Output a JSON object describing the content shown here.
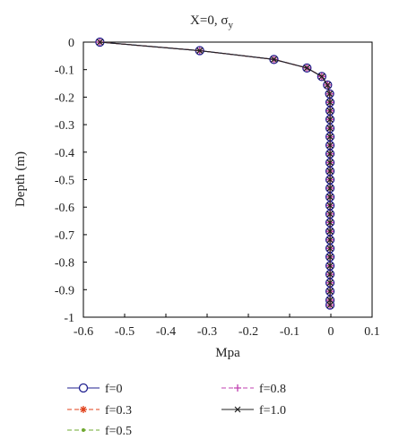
{
  "chart_data": {
    "type": "line",
    "title": "X=0, σ",
    "title_subscript": "y",
    "xlabel": "Mpa",
    "ylabel": "Depth (m)",
    "xlim": [
      -0.6,
      0.1
    ],
    "ylim": [
      -1,
      0
    ],
    "x_ticks": [
      -0.6,
      -0.5,
      -0.4,
      -0.3,
      -0.2,
      -0.1,
      0,
      0.1
    ],
    "x_tick_labels": [
      "-0.6",
      "-0.5",
      "-0.4",
      "-0.3",
      "-0.2",
      "-0.1",
      "0",
      "0.1"
    ],
    "y_ticks": [
      0,
      -0.1,
      -0.2,
      -0.3,
      -0.4,
      -0.5,
      -0.6,
      -0.7,
      -0.8,
      -0.9,
      -1
    ],
    "y_tick_labels": [
      "0",
      "-0.1",
      "-0.2",
      "-0.3",
      "-0.4",
      "-0.5",
      "-0.6",
      "-0.7",
      "-0.8",
      "-0.9",
      "-1"
    ],
    "grid": false,
    "legend_position": "bottom",
    "depth": [
      0,
      -0.031,
      -0.063,
      -0.094,
      -0.125,
      -0.156,
      -0.188,
      -0.219,
      -0.25,
      -0.281,
      -0.313,
      -0.344,
      -0.375,
      -0.406,
      -0.438,
      -0.469,
      -0.5,
      -0.531,
      -0.563,
      -0.594,
      -0.625,
      -0.656,
      -0.688,
      -0.719,
      -0.75,
      -0.781,
      -0.813,
      -0.844,
      -0.875,
      -0.906,
      -0.938,
      -0.956
    ],
    "series": [
      {
        "name": "f=0",
        "color": "#1f1f8f",
        "marker": "circle",
        "dash": "",
        "values": [
          -0.56,
          -0.318,
          -0.138,
          -0.058,
          -0.022,
          -0.008,
          -0.003,
          -0.002,
          -0.002,
          -0.002,
          -0.002,
          -0.002,
          -0.002,
          -0.002,
          -0.002,
          -0.002,
          -0.002,
          -0.002,
          -0.002,
          -0.002,
          -0.002,
          -0.002,
          -0.002,
          -0.002,
          -0.002,
          -0.002,
          -0.002,
          -0.002,
          -0.002,
          -0.002,
          -0.002,
          -0.002
        ]
      },
      {
        "name": "f=0.3",
        "color": "#e0401a",
        "marker": "asterisk",
        "dash": "5,3",
        "values": [
          -0.56,
          -0.318,
          -0.138,
          -0.058,
          -0.022,
          -0.008,
          -0.003,
          -0.002,
          -0.002,
          -0.002,
          -0.002,
          -0.002,
          -0.002,
          -0.002,
          -0.002,
          -0.002,
          -0.002,
          -0.002,
          -0.002,
          -0.002,
          -0.002,
          -0.002,
          -0.002,
          -0.002,
          -0.002,
          -0.002,
          -0.002,
          -0.002,
          -0.002,
          -0.002,
          -0.002,
          -0.002
        ]
      },
      {
        "name": "f=0.5",
        "color": "#6fa830",
        "marker": "dot",
        "dash": "5,3",
        "values": [
          -0.56,
          -0.318,
          -0.138,
          -0.058,
          -0.022,
          -0.008,
          -0.003,
          -0.002,
          -0.002,
          -0.002,
          -0.002,
          -0.002,
          -0.002,
          -0.002,
          -0.002,
          -0.002,
          -0.002,
          -0.002,
          -0.002,
          -0.002,
          -0.002,
          -0.002,
          -0.002,
          -0.002,
          -0.002,
          -0.002,
          -0.002,
          -0.002,
          -0.002,
          -0.002,
          -0.002,
          -0.002
        ]
      },
      {
        "name": "f=0.8",
        "color": "#c040b0",
        "marker": "plus",
        "dash": "5,3",
        "values": [
          -0.56,
          -0.318,
          -0.138,
          -0.058,
          -0.022,
          -0.008,
          -0.003,
          -0.002,
          -0.002,
          -0.002,
          -0.002,
          -0.002,
          -0.002,
          -0.002,
          -0.002,
          -0.002,
          -0.002,
          -0.002,
          -0.002,
          -0.002,
          -0.002,
          -0.002,
          -0.002,
          -0.002,
          -0.002,
          -0.002,
          -0.002,
          -0.002,
          -0.002,
          -0.002,
          -0.002,
          -0.002
        ]
      },
      {
        "name": "f=1.0",
        "color": "#222222",
        "marker": "cross",
        "dash": "",
        "values": [
          -0.56,
          -0.318,
          -0.138,
          -0.058,
          -0.022,
          -0.008,
          -0.003,
          -0.002,
          -0.002,
          -0.002,
          -0.002,
          -0.002,
          -0.002,
          -0.002,
          -0.002,
          -0.002,
          -0.002,
          -0.002,
          -0.002,
          -0.002,
          -0.002,
          -0.002,
          -0.002,
          -0.002,
          -0.002,
          -0.002,
          -0.002,
          -0.002,
          -0.002,
          -0.002,
          -0.002,
          -0.002
        ]
      }
    ]
  }
}
